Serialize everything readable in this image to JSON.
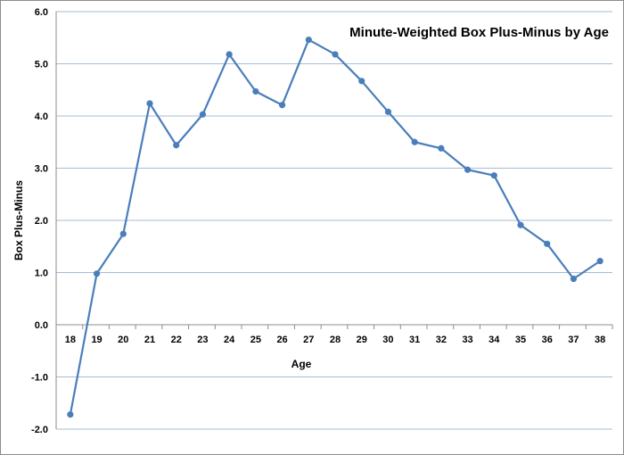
{
  "chart_data": {
    "type": "line",
    "title": "Minute-Weighted Box Plus-Minus by Age",
    "xlabel": "Age",
    "ylabel": "Box Plus-Minus",
    "ylim": [
      -2.0,
      6.0
    ],
    "y_ticks": [
      "6.0",
      "5.0",
      "4.0",
      "3.0",
      "2.0",
      "1.0",
      "0.0",
      "-1.0",
      "-2.0"
    ],
    "y_tick_values": [
      6,
      5,
      4,
      3,
      2,
      1,
      0,
      -1,
      -2
    ],
    "grid": true,
    "legend": "none",
    "series_color": "#4a7ebb",
    "categories": [
      "18",
      "19",
      "20",
      "21",
      "22",
      "23",
      "24",
      "25",
      "26",
      "27",
      "28",
      "29",
      "30",
      "31",
      "32",
      "33",
      "34",
      "35",
      "36",
      "37",
      "38"
    ],
    "values": [
      -1.72,
      0.98,
      1.74,
      4.24,
      3.44,
      4.03,
      5.18,
      4.47,
      4.21,
      5.46,
      5.18,
      4.67,
      4.08,
      3.5,
      3.38,
      2.97,
      2.86,
      1.91,
      1.55,
      0.88,
      1.22
    ]
  }
}
